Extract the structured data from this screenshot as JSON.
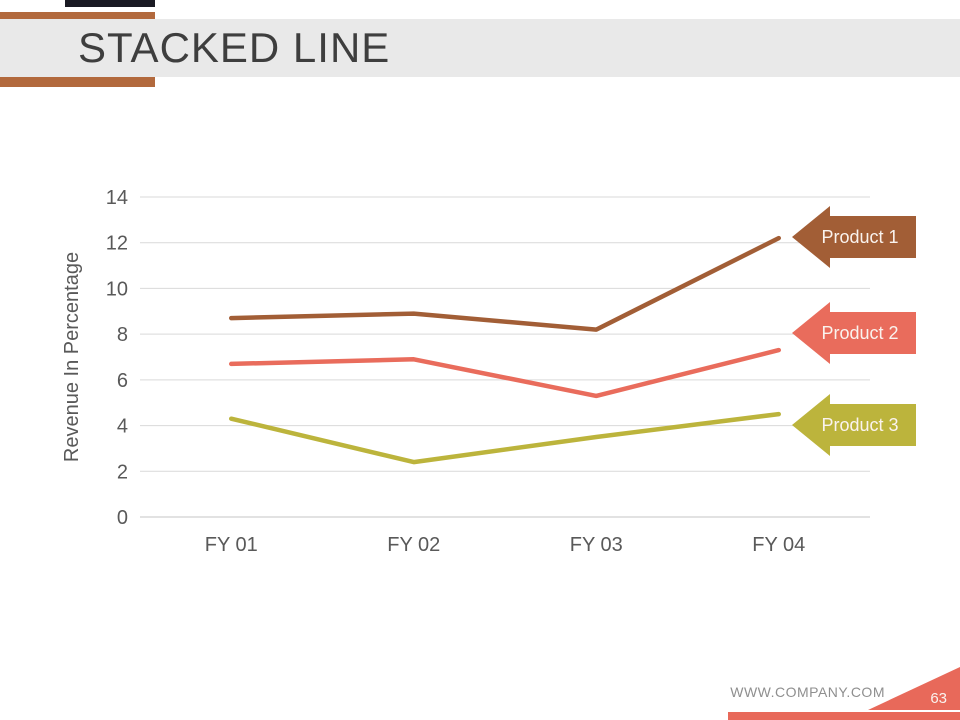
{
  "header": {
    "title": "STACKED LINE"
  },
  "colors": {
    "accent_orange": "#b2693d",
    "header_dark_bar": "#1a1a23",
    "header_gray_band": "#e9e9e9",
    "footer_salmon": "#e8695a",
    "axis_text": "#595959",
    "gridline": "#d9d9d9",
    "axis_line": "#c4c4c4",
    "arrow_label_text": "#faf3ee"
  },
  "chart_data": {
    "type": "line",
    "title": "",
    "categories": [
      "FY 01",
      "FY 02",
      "FY 03",
      "FY 04"
    ],
    "series": [
      {
        "name": "Product 1",
        "values": [
          8.7,
          8.9,
          8.2,
          12.2
        ],
        "color": "#a25e36"
      },
      {
        "name": "Product 2",
        "values": [
          6.7,
          6.9,
          5.3,
          7.3
        ],
        "color": "#e96c5c"
      },
      {
        "name": "Product 3",
        "values": [
          4.3,
          2.4,
          3.5,
          4.5
        ],
        "color": "#bcb43c"
      }
    ],
    "xlabel": "",
    "ylabel": "Revenue In Percentage",
    "ylim": [
      0,
      14
    ],
    "yticks": [
      0,
      2,
      4,
      6,
      8,
      10,
      12,
      14
    ],
    "grid": true,
    "legend_position": "right-arrow-callouts"
  },
  "footer": {
    "website": "WWW.COMPANY.COM",
    "page_number": "63"
  }
}
